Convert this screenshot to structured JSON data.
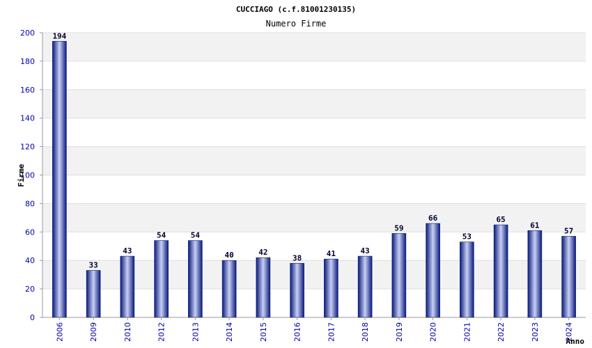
{
  "chart_data": {
    "type": "bar",
    "title": "CUCCIAGO (c.f.81001230135)",
    "subtitle": "Numero Firme",
    "xlabel": "Anno",
    "ylabel": "Firme",
    "ylim": [
      0,
      200
    ],
    "yticks": [
      0,
      20,
      40,
      60,
      80,
      100,
      120,
      140,
      160,
      180,
      200
    ],
    "grid": true,
    "categories": [
      "2006",
      "2009",
      "2010",
      "2012",
      "2013",
      "2014",
      "2015",
      "2016",
      "2017",
      "2018",
      "2019",
      "2020",
      "2021",
      "2022",
      "2023",
      "2024"
    ],
    "values": [
      194,
      33,
      43,
      54,
      54,
      40,
      42,
      38,
      41,
      43,
      59,
      66,
      53,
      65,
      61,
      57
    ],
    "colors": {
      "bar_dark": "#0a1a7a",
      "bar_light": "#c8d0f5",
      "band": "#f2f2f2",
      "grid": "#dddddd",
      "tick_text": "#0000aa"
    }
  }
}
